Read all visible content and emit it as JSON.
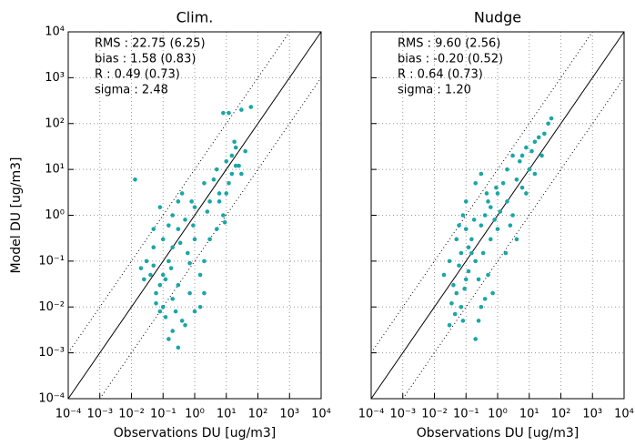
{
  "chart_data": [
    {
      "type": "scatter",
      "title": "Clim.",
      "xlabel": "Observations DU [ug/m3]",
      "ylabel": "Model DU [ug/m3]",
      "xscale": "log",
      "yscale": "log",
      "grid": true,
      "color": "#1aa6a6",
      "annotations": [
        "RMS : 22.75 (6.25)",
        "bias : 1.58 (0.83)",
        "R : 0.49 (0.73)",
        "sigma : 2.48"
      ],
      "xlim": [
        0.0001,
        10000
      ],
      "ylim": [
        0.0001,
        10000
      ],
      "xticks": [
        {
          "value": 0.0001,
          "label": "10⁻⁴"
        },
        {
          "value": 0.001,
          "label": "10⁻³"
        },
        {
          "value": 0.01,
          "label": "10⁻²"
        },
        {
          "value": 0.1,
          "label": "10⁻¹"
        },
        {
          "value": 1,
          "label": "10⁰"
        },
        {
          "value": 10,
          "label": "10¹"
        },
        {
          "value": 100,
          "label": "10²"
        },
        {
          "value": 1000,
          "label": "10³"
        },
        {
          "value": 10000,
          "label": "10⁴"
        }
      ],
      "yticks": [
        {
          "value": 0.0001,
          "label": "10⁻⁴"
        },
        {
          "value": 0.001,
          "label": "10⁻³"
        },
        {
          "value": 0.01,
          "label": "10⁻²"
        },
        {
          "value": 0.1,
          "label": "10⁻¹"
        },
        {
          "value": 1,
          "label": "10⁰"
        },
        {
          "value": 10,
          "label": "10¹"
        },
        {
          "value": 100,
          "label": "10²"
        },
        {
          "value": 1000,
          "label": "10³"
        },
        {
          "value": 10000,
          "label": "10⁴"
        }
      ],
      "x": [
        0.013,
        8,
        12,
        30,
        60,
        20,
        15,
        10,
        25,
        30,
        40,
        5,
        6,
        3,
        2,
        1,
        0.8,
        0.5,
        0.4,
        0.3,
        0.2,
        0.15,
        0.1,
        0.08,
        0.06,
        0.05,
        0.04,
        0.03,
        0.02,
        0.025,
        0.1,
        0.12,
        0.2,
        0.3,
        0.15,
        0.5,
        1,
        0.7,
        1.5,
        2,
        3,
        5,
        8,
        10,
        12,
        15,
        4,
        1,
        0.6,
        0.3,
        0.2,
        0.08,
        0.06,
        0.05,
        0.1,
        0.15,
        0.2,
        0.3,
        0.08,
        0.05,
        2,
        1.5,
        0.4,
        0.25,
        0.12,
        0.18,
        0.9,
        2.5,
        6,
        20,
        18,
        9,
        0.35,
        0.7
      ],
      "y": [
        6,
        170,
        170,
        200,
        230,
        30,
        20,
        15,
        12,
        8,
        25,
        10,
        3,
        2,
        5,
        1.5,
        2,
        0.8,
        3,
        0.5,
        0.2,
        0.1,
        0.05,
        0.03,
        0.02,
        0.08,
        0.05,
        0.1,
        0.07,
        0.04,
        0.01,
        0.006,
        0.003,
        0.0013,
        0.002,
        0.004,
        0.008,
        0.02,
        0.05,
        0.1,
        0.3,
        0.5,
        1,
        3,
        5,
        8,
        6,
        0.3,
        0.15,
        0.03,
        0.015,
        0.008,
        0.012,
        0.2,
        0.3,
        0.6,
        1,
        2,
        1.5,
        0.5,
        0.02,
        0.01,
        0.005,
        0.008,
        0.04,
        0.07,
        0.6,
        1.2,
        2,
        12,
        40,
        0.7,
        0.25,
        0.09
      ]
    },
    {
      "type": "scatter",
      "title": "Nudge",
      "xlabel": "Observations DU [ug/m3]",
      "xscale": "log",
      "yscale": "log",
      "grid": true,
      "color": "#1aa6a6",
      "annotations": [
        "RMS : 9.60 (2.56)",
        "bias : -0.20 (0.52)",
        "R : 0.64 (0.73)",
        "sigma : 1.20"
      ],
      "xlim": [
        0.0001,
        10000
      ],
      "ylim": [
        0.0001,
        10000
      ],
      "xticks": [
        {
          "value": 0.0001,
          "label": "10⁻⁴"
        },
        {
          "value": 0.001,
          "label": "10⁻³"
        },
        {
          "value": 0.01,
          "label": "10⁻²"
        },
        {
          "value": 0.1,
          "label": "10⁻¹"
        },
        {
          "value": 1,
          "label": "10⁰"
        },
        {
          "value": 10,
          "label": "10¹"
        },
        {
          "value": 100,
          "label": "10²"
        },
        {
          "value": 1000,
          "label": "10³"
        },
        {
          "value": 10000,
          "label": "10⁴"
        }
      ],
      "yticks": [
        0.0001,
        0.001,
        0.01,
        0.1,
        1,
        10,
        100,
        1000,
        10000
      ],
      "x": [
        0.02,
        0.03,
        0.04,
        0.05,
        0.06,
        0.07,
        0.08,
        0.1,
        0.12,
        0.1,
        0.15,
        0.2,
        0.2,
        0.25,
        0.3,
        0.3,
        0.4,
        0.5,
        0.6,
        0.8,
        1,
        1,
        1.5,
        2,
        2,
        3,
        3,
        4,
        5,
        6,
        8,
        10,
        12,
        15,
        20,
        25,
        30,
        50,
        40,
        0.5,
        0.7,
        0.4,
        0.05,
        0.06,
        0.08,
        0.1,
        0.2,
        0.3,
        0.15,
        0.12,
        0.09,
        0.035,
        0.045,
        0.25,
        0.35,
        0.6,
        0.9,
        1.2,
        2.5,
        4,
        6,
        8,
        15,
        0.07,
        0.18,
        0.45,
        0.03,
        1.8
      ],
      "y": [
        0.05,
        0.1,
        0.03,
        0.02,
        0.08,
        0.01,
        0.005,
        0.04,
        0.2,
        0.5,
        0.3,
        0.1,
        0.002,
        0.005,
        0.01,
        0.6,
        1,
        2,
        0.3,
        0.8,
        3,
        0.5,
        5,
        2,
        10,
        1,
        20,
        6,
        15,
        4,
        30,
        10,
        25,
        8,
        50,
        20,
        60,
        130,
        100,
        0.05,
        0.02,
        0.015,
        0.3,
        0.6,
        1,
        2,
        5,
        8,
        0.15,
        0.06,
        0.025,
        0.012,
        0.007,
        0.04,
        0.15,
        1.5,
        4,
        1.2,
        0.6,
        0.3,
        20,
        3,
        40,
        0.15,
        0.8,
        3,
        0.004,
        0.15
      ]
    }
  ]
}
